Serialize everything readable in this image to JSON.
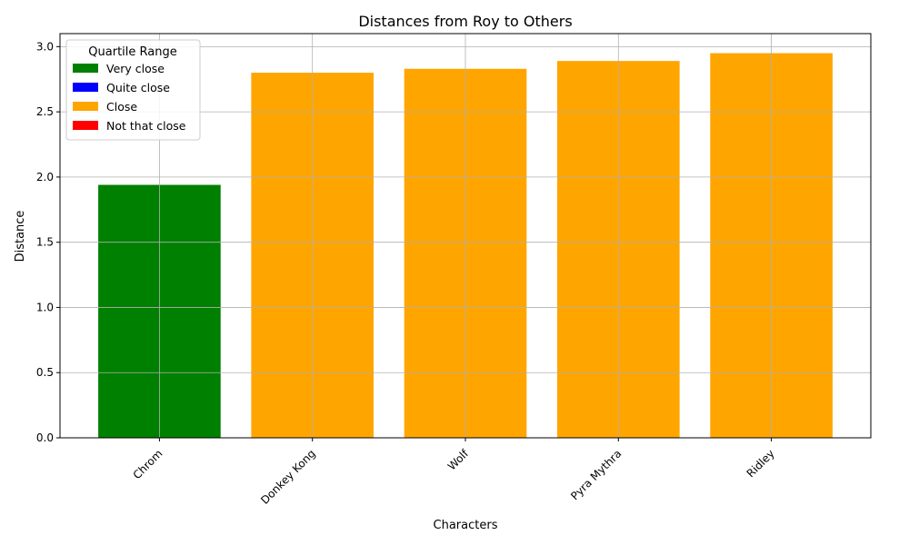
{
  "chart_data": {
    "type": "bar",
    "title": "Distances from Roy to Others",
    "xlabel": "Characters",
    "ylabel": "Distance",
    "categories": [
      "Chrom",
      "Donkey Kong",
      "Wolf",
      "Pyra Mythra",
      "Ridley"
    ],
    "values": [
      1.94,
      2.8,
      2.83,
      2.89,
      2.95
    ],
    "bar_colors": [
      "#008000",
      "#ffa500",
      "#ffa500",
      "#ffa500",
      "#ffa500"
    ],
    "ylim": [
      0,
      3.1
    ],
    "yticks": [
      "0.0",
      "0.5",
      "1.0",
      "1.5",
      "2.0",
      "2.5",
      "3.0"
    ],
    "grid": true,
    "x_tick_rotation": 45,
    "legend": {
      "title": "Quartile Range",
      "placement": "top-left",
      "entries": [
        {
          "label": "Very close",
          "color": "#008000"
        },
        {
          "label": "Quite close",
          "color": "#0000ff"
        },
        {
          "label": "Close",
          "color": "#ffa500"
        },
        {
          "label": "Not that close",
          "color": "#ff0000"
        }
      ]
    }
  }
}
